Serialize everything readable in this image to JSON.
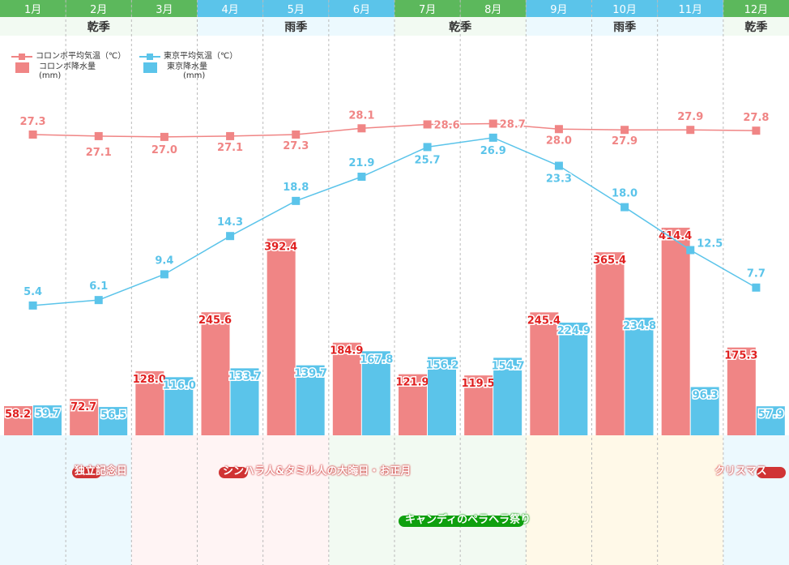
{
  "months": [
    "1月",
    "2月",
    "3月",
    "4月",
    "5月",
    "6月",
    "7月",
    "8月",
    "9月",
    "10月",
    "11月",
    "12月"
  ],
  "month_colors": [
    "#5cb85c",
    "#5cb85c",
    "#5cb85c",
    "#5bc4ea",
    "#5bc4ea",
    "#5bc4ea",
    "#5cb85c",
    "#5cb85c",
    "#5bc4ea",
    "#5bc4ea",
    "#5bc4ea",
    "#5cb85c"
  ],
  "seasons": [
    {
      "label": "乾季"
    },
    {
      "label": "雨季"
    },
    {
      "label": "乾季"
    },
    {
      "label": "雨季"
    },
    {
      "label": "乾季"
    }
  ],
  "legend": {
    "colombo_temp": "コロンボ平均気温（℃）",
    "colombo_rain": "コロンボ降水量",
    "colombo_rain_unit": "(mm)",
    "tokyo_temp": "東京平均気温（℃）",
    "tokyo_rain": "東京降水量",
    "tokyo_rain_unit": "(mm)"
  },
  "events": {
    "independence": "独立記念日",
    "new_year": "シンハラ人&タミル人の大晦日・お正月",
    "christmas": "クリスマス",
    "kandy": "キャンディのペラヘラ祭り"
  },
  "colors": {
    "colombo": "#f08585",
    "tokyo": "#5bc4ea",
    "colombo_text": "#e02020",
    "event_red": "#d03535",
    "event_green": "#10a010"
  },
  "chart_data": {
    "type": "bar+line",
    "categories": [
      "1月",
      "2月",
      "3月",
      "4月",
      "5月",
      "6月",
      "7月",
      "8月",
      "9月",
      "10月",
      "11月",
      "12月"
    ],
    "series": [
      {
        "name": "コロンボ降水量(mm)",
        "type": "bar",
        "values": [
          58.2,
          72.7,
          128.0,
          245.6,
          392.4,
          184.9,
          121.9,
          119.5,
          245.4,
          365.4,
          414.4,
          175.3
        ]
      },
      {
        "name": "東京降水量(mm)",
        "type": "bar",
        "values": [
          59.7,
          56.5,
          116.0,
          133.7,
          139.7,
          167.8,
          156.2,
          154.7,
          224.9,
          234.8,
          96.3,
          57.9
        ]
      },
      {
        "name": "コロンボ平均気温（℃）",
        "type": "line",
        "values": [
          27.3,
          27.1,
          27.0,
          27.1,
          27.3,
          28.1,
          28.6,
          28.7,
          28.0,
          27.9,
          27.9,
          27.8
        ]
      },
      {
        "name": "東京平均気温（℃）",
        "type": "line",
        "values": [
          5.4,
          6.1,
          9.4,
          14.3,
          18.8,
          21.9,
          25.7,
          26.9,
          23.3,
          18.0,
          12.5,
          7.7
        ]
      }
    ]
  }
}
